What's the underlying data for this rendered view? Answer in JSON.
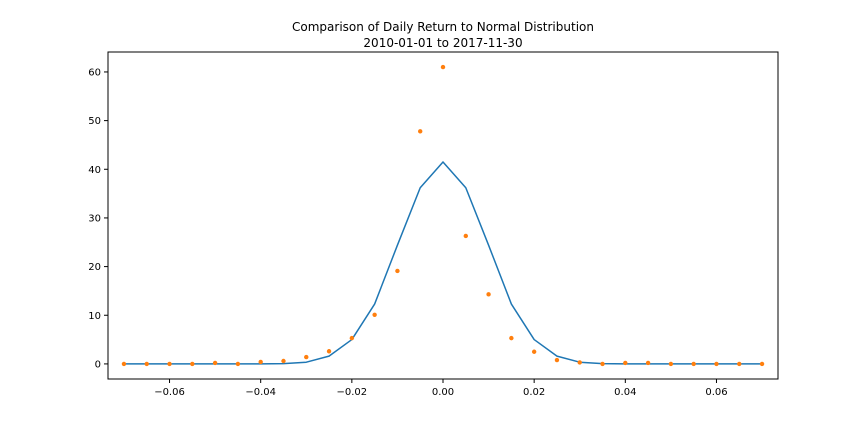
{
  "chart_data": {
    "type": "line",
    "title_line1": "Comparison of Daily Return to Normal Distribution",
    "title_line2": "2010-01-01 to 2017-11-30",
    "xlabel": "",
    "ylabel": "",
    "xlim": [
      -0.0735,
      0.0735
    ],
    "ylim": [
      -3.1,
      64.1
    ],
    "grid": false,
    "x_ticks": [
      -0.06,
      -0.04,
      -0.02,
      0.0,
      0.02,
      0.04,
      0.06
    ],
    "x_tick_labels": [
      "−0.06",
      "−0.04",
      "−0.02",
      "0.00",
      "0.02",
      "0.04",
      "0.06"
    ],
    "y_ticks": [
      0,
      10,
      20,
      30,
      40,
      50,
      60
    ],
    "y_tick_labels": [
      "0",
      "10",
      "20",
      "30",
      "40",
      "50",
      "60"
    ],
    "series": [
      {
        "kind": "line",
        "color": "#1f77b4",
        "x": [
          -0.07,
          -0.065,
          -0.06,
          -0.055,
          -0.05,
          -0.045,
          -0.04,
          -0.035,
          -0.03,
          -0.025,
          -0.02,
          -0.015,
          -0.01,
          -0.005,
          0.0,
          0.005,
          0.01,
          0.015,
          0.02,
          0.025,
          0.03,
          0.035,
          0.04,
          0.045,
          0.05,
          0.055,
          0.06,
          0.065,
          0.07
        ],
        "values": [
          0,
          0,
          0,
          0,
          0,
          0,
          0,
          0.05,
          0.35,
          1.6,
          5.0,
          12.3,
          24.4,
          36.2,
          41.5,
          36.2,
          24.4,
          12.3,
          5.0,
          1.6,
          0.35,
          0.05,
          0,
          0,
          0,
          0,
          0,
          0,
          0
        ]
      },
      {
        "kind": "scatter",
        "color": "#ff7f0e",
        "x": [
          -0.07,
          -0.065,
          -0.06,
          -0.055,
          -0.05,
          -0.045,
          -0.04,
          -0.035,
          -0.03,
          -0.025,
          -0.02,
          -0.015,
          -0.01,
          -0.005,
          0.0,
          0.005,
          0.01,
          0.015,
          0.02,
          0.025,
          0.03,
          0.035,
          0.04,
          0.045,
          0.05,
          0.055,
          0.06,
          0.065,
          0.07
        ],
        "values": [
          0,
          0,
          0,
          0,
          0.2,
          0,
          0.4,
          0.6,
          1.4,
          2.6,
          5.3,
          10.1,
          19.1,
          47.8,
          61.0,
          26.3,
          14.3,
          5.3,
          2.5,
          0.8,
          0.3,
          0,
          0.2,
          0.2,
          0,
          0,
          0,
          0,
          0
        ]
      }
    ]
  }
}
